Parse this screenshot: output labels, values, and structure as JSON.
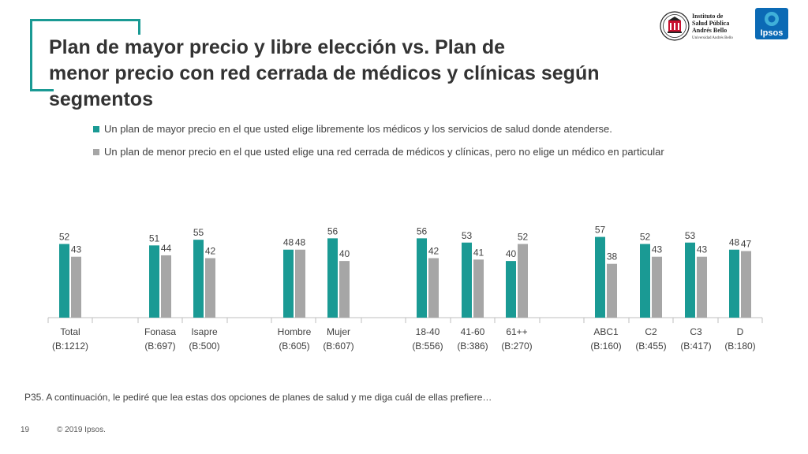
{
  "header": {
    "title_line1": "Plan de mayor precio y libre elección vs. Plan de",
    "title_line2": "menor precio con red cerrada de médicos y clínicas según segmentos"
  },
  "logos": {
    "iab_line1": "Instituto de",
    "iab_line2": "Salud Pública",
    "iab_line3": "Andrés Bello",
    "iab_sub": "Universidad Andrés Bello",
    "ipsos": "Ipsos"
  },
  "colors": {
    "teal": "#1a9a94",
    "gray": "#a6a6a6",
    "accent": "#1a9a94"
  },
  "chart_data": {
    "type": "bar",
    "title": "",
    "xlabel": "",
    "ylabel": "",
    "ylim": [
      0,
      100
    ],
    "grid": false,
    "legend": "top",
    "categories": [
      {
        "name": "Total",
        "base": "(B:1212)"
      },
      {
        "name": "Fonasa",
        "base": "(B:697)"
      },
      {
        "name": "Isapre",
        "base": "(B:500)"
      },
      {
        "name": "Hombre",
        "base": "(B:605)"
      },
      {
        "name": "Mujer",
        "base": "(B:607)"
      },
      {
        "name": "18-40",
        "base": "(B:556)"
      },
      {
        "name": "41-60",
        "base": "(B:386)"
      },
      {
        "name": "61++",
        "base": "(B:270)"
      },
      {
        "name": "ABC1",
        "base": "(B:160)"
      },
      {
        "name": "C2",
        "base": "(B:455)"
      },
      {
        "name": "C3",
        "base": "(B:417)"
      },
      {
        "name": "D",
        "base": "(B:180)"
      }
    ],
    "series": [
      {
        "name": "Un plan de mayor precio en el que usted elige libremente los médicos y los servicios de salud donde atenderse.",
        "color": "#1a9a94",
        "values": [
          52,
          51,
          55,
          48,
          56,
          56,
          53,
          40,
          57,
          52,
          53,
          48
        ]
      },
      {
        "name": "Un plan de menor precio en el que usted elige una red cerrada de médicos y clínicas, pero no elige un médico en particular",
        "color": "#a6a6a6",
        "values": [
          43,
          44,
          42,
          48,
          40,
          42,
          41,
          52,
          38,
          43,
          43,
          47
        ]
      }
    ]
  },
  "footer": {
    "question": "P35. A continuación, le pediré que lea estas dos opciones de planes de salud y me diga cuál de ellas prefiere…",
    "page": "19",
    "copyright": "© 2019 Ipsos."
  }
}
